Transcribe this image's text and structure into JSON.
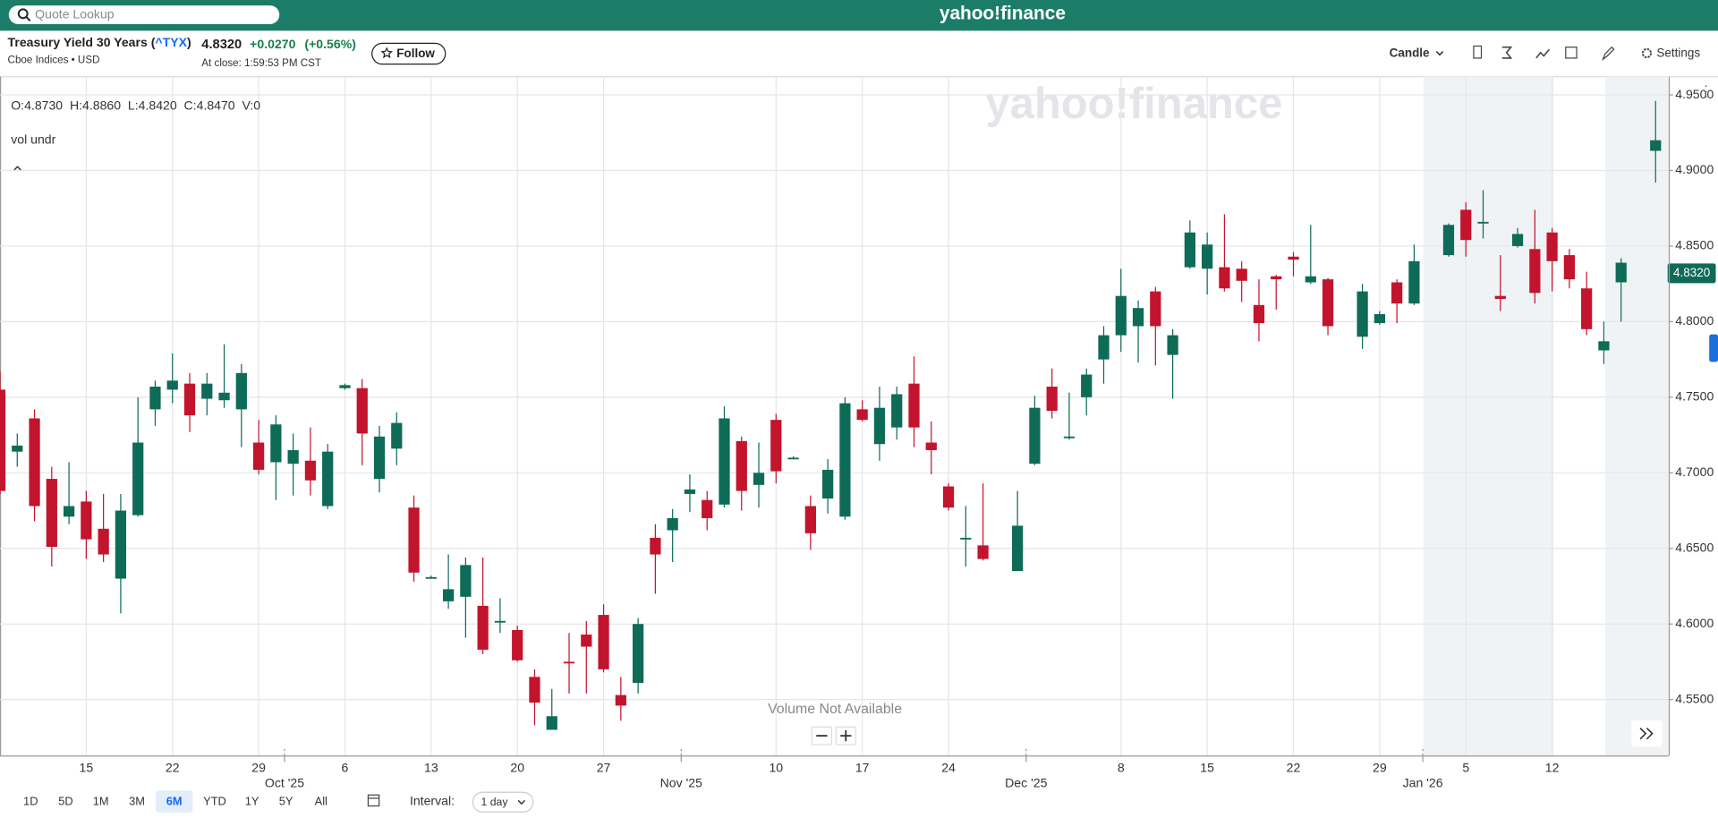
{
  "header": {
    "search_placeholder": "Quote Lookup",
    "brand": "yahoo!finance"
  },
  "quote": {
    "name_prefix": "Treasury Yield 30 Years (",
    "symbol": "^TYX",
    "name_suffix": ")",
    "exchange": "Cboe Indices • USD",
    "price": "4.8320",
    "change": "+0.0270",
    "change_percent": "(+0.56%)",
    "close_time": "At close: 1:59:53 PM CST",
    "follow": "Follow"
  },
  "toolbar": {
    "chart_type": "Candle",
    "settings": "Settings"
  },
  "chart_data": {
    "type": "candlestick",
    "watermark": "yahoo!finance",
    "ohlc_readout": "O:4.8730  H:4.8860  L:4.8420  C:4.8470  V:0",
    "study_label": "vol undr",
    "volume_note": "Volume Not Available",
    "up_color": "#0e6b57",
    "down_color": "#c3142d",
    "ylim": [
      4.513,
      4.962
    ],
    "yticks": [
      {
        "value": 4.55,
        "label": "4.5500"
      },
      {
        "value": 4.6,
        "label": "4.6000"
      },
      {
        "value": 4.65,
        "label": "4.6500"
      },
      {
        "value": 4.7,
        "label": "4.7000"
      },
      {
        "value": 4.75,
        "label": "4.7500"
      },
      {
        "value": 4.8,
        "label": "4.8000"
      },
      {
        "value": 4.85,
        "label": "4.8500"
      },
      {
        "value": 4.9,
        "label": "4.9000"
      },
      {
        "value": 4.95,
        "label": "4.9500"
      }
    ],
    "last_price": {
      "value": 4.832,
      "label": "4.8320"
    },
    "grid": true,
    "categories": [
      null,
      null,
      null,
      null,
      null,
      "15",
      null,
      null,
      null,
      null,
      "22",
      null,
      null,
      null,
      null,
      "29",
      null,
      null,
      null,
      null,
      "6",
      null,
      null,
      null,
      null,
      "13",
      null,
      null,
      null,
      null,
      "20",
      null,
      null,
      null,
      null,
      "27",
      null,
      null,
      null,
      null,
      null,
      null,
      null,
      null,
      null,
      "10",
      null,
      null,
      null,
      null,
      "17",
      null,
      null,
      null,
      null,
      "24",
      null,
      null,
      null,
      null,
      null,
      null,
      null,
      null,
      null,
      "8",
      null,
      null,
      null,
      null,
      "15",
      null,
      null,
      null,
      null,
      "22",
      null,
      null,
      null,
      null,
      "29",
      null,
      null,
      null,
      null,
      "5",
      null,
      null,
      null,
      null,
      "12",
      null,
      null,
      null,
      null,
      null,
      null
    ],
    "months": [
      null,
      null,
      null,
      null,
      null,
      null,
      null,
      null,
      null,
      null,
      null,
      null,
      null,
      null,
      null,
      null,
      null,
      "Oct '25",
      null,
      null,
      null,
      null,
      null,
      null,
      null,
      null,
      null,
      null,
      null,
      null,
      null,
      null,
      null,
      null,
      null,
      null,
      null,
      null,
      null,
      null,
      "Nov '25",
      null,
      null,
      null,
      null,
      null,
      null,
      null,
      null,
      null,
      null,
      null,
      null,
      null,
      null,
      null,
      null,
      null,
      null,
      null,
      "Dec '25",
      null,
      null,
      null,
      null,
      null,
      null,
      null,
      null,
      null,
      null,
      null,
      null,
      null,
      null,
      null,
      null,
      null,
      null,
      null,
      null,
      null,
      null,
      "Jan '26",
      null,
      null,
      null,
      null,
      null,
      null,
      null,
      null,
      null,
      null,
      null,
      null,
      null
    ],
    "open": [
      4.755,
      4.714,
      4.736,
      4.696,
      4.671,
      4.681,
      4.663,
      4.63,
      4.672,
      4.742,
      4.755,
      4.759,
      4.749,
      4.748,
      4.742,
      4.72,
      4.707,
      4.706,
      4.708,
      4.678,
      4.756,
      4.756,
      4.696,
      4.716,
      4.677,
      4.631,
      4.615,
      4.618,
      4.612,
      4.601,
      4.596,
      4.565,
      4.53,
      4.575,
      4.593,
      4.606,
      4.553,
      4.561,
      4.657,
      4.662,
      4.686,
      4.682,
      4.679,
      4.721,
      4.692,
      4.735,
      4.71,
      4.678,
      4.683,
      4.671,
      4.742,
      4.719,
      4.73,
      4.759,
      4.72,
      4.691,
      4.656,
      4.652,
      null,
      4.635,
      4.706,
      4.757,
      4.723,
      4.75,
      4.775,
      4.791,
      4.797,
      4.82,
      4.778,
      4.836,
      4.835,
      4.836,
      4.835,
      4.811,
      4.83,
      4.843,
      4.826,
      4.828,
      null,
      4.79,
      4.799,
      4.826,
      4.812,
      null,
      4.844,
      4.874,
      4.865,
      4.817,
      4.85,
      4.848,
      4.859,
      4.844,
      4.822,
      4.781,
      4.826,
      null,
      4.913
    ],
    "high": [
      4.767,
      4.726,
      4.742,
      4.704,
      4.707,
      4.688,
      4.686,
      4.686,
      4.75,
      4.761,
      4.779,
      4.766,
      4.766,
      4.785,
      4.772,
      4.735,
      4.738,
      4.726,
      4.73,
      4.719,
      4.759,
      4.762,
      4.731,
      4.74,
      4.685,
      4.632,
      4.646,
      4.644,
      4.644,
      4.617,
      4.599,
      4.57,
      4.557,
      4.594,
      4.602,
      4.613,
      4.565,
      4.604,
      4.666,
      4.676,
      4.699,
      4.688,
      4.744,
      4.724,
      4.72,
      4.739,
      4.711,
      4.685,
      4.709,
      4.75,
      4.748,
      4.757,
      4.757,
      4.777,
      4.734,
      4.693,
      4.678,
      4.693,
      null,
      4.688,
      4.751,
      4.769,
      4.753,
      4.769,
      4.797,
      4.835,
      4.814,
      4.823,
      4.795,
      4.867,
      4.859,
      4.871,
      4.84,
      4.828,
      4.831,
      4.846,
      4.864,
      4.829,
      null,
      4.825,
      4.807,
      4.828,
      4.851,
      null,
      4.865,
      4.879,
      4.887,
      4.844,
      4.862,
      4.874,
      4.862,
      4.848,
      4.833,
      4.8,
      4.842,
      null,
      4.946
    ],
    "low": [
      4.686,
      4.704,
      4.668,
      4.638,
      4.666,
      4.643,
      4.641,
      4.607,
      4.671,
      4.731,
      4.746,
      4.727,
      4.738,
      4.743,
      4.717,
      4.699,
      4.682,
      4.685,
      4.685,
      4.676,
      4.755,
      4.705,
      4.687,
      4.705,
      4.628,
      4.63,
      4.61,
      4.591,
      4.58,
      4.594,
      4.575,
      4.533,
      4.53,
      4.554,
      4.554,
      4.568,
      4.536,
      4.554,
      4.62,
      4.641,
      4.674,
      4.662,
      4.677,
      4.675,
      4.677,
      4.693,
      4.709,
      4.649,
      4.673,
      4.669,
      4.734,
      4.708,
      4.722,
      4.717,
      4.699,
      4.675,
      4.638,
      4.642,
      null,
      4.635,
      4.705,
      4.736,
      4.722,
      4.738,
      4.759,
      4.78,
      4.773,
      4.771,
      4.749,
      4.835,
      4.818,
      4.82,
      4.813,
      4.787,
      4.808,
      4.83,
      4.825,
      4.791,
      null,
      4.782,
      4.798,
      4.799,
      4.811,
      null,
      4.843,
      4.843,
      4.855,
      4.807,
      4.849,
      4.812,
      4.82,
      4.822,
      4.791,
      4.772,
      4.8,
      null,
      4.892
    ],
    "close": [
      4.688,
      4.718,
      4.678,
      4.651,
      4.678,
      4.656,
      4.646,
      4.675,
      4.72,
      4.757,
      4.761,
      4.738,
      4.759,
      4.753,
      4.766,
      4.702,
      4.732,
      4.715,
      4.695,
      4.714,
      4.758,
      4.726,
      4.724,
      4.733,
      4.634,
      4.631,
      4.623,
      4.639,
      4.583,
      4.602,
      4.576,
      4.548,
      4.539,
      4.574,
      4.585,
      4.57,
      4.546,
      4.6,
      4.646,
      4.67,
      4.689,
      4.67,
      4.736,
      4.688,
      4.7,
      4.701,
      4.71,
      4.66,
      4.702,
      4.746,
      4.735,
      4.743,
      4.752,
      4.73,
      4.715,
      4.677,
      4.657,
      4.643,
      null,
      4.665,
      4.743,
      4.741,
      4.724,
      4.765,
      4.791,
      4.817,
      4.809,
      4.797,
      4.791,
      4.859,
      4.851,
      4.822,
      4.827,
      4.799,
      4.828,
      4.841,
      4.83,
      4.797,
      null,
      4.82,
      4.805,
      4.812,
      4.84,
      null,
      4.864,
      4.854,
      4.866,
      4.815,
      4.858,
      4.819,
      4.84,
      4.828,
      4.795,
      4.787,
      4.839,
      null,
      4.92
    ]
  },
  "footer": {
    "ranges": [
      "1D",
      "5D",
      "1M",
      "3M",
      "6M",
      "YTD",
      "1Y",
      "5Y",
      "All"
    ],
    "selected_range": "6M",
    "interval_label": "Interval:",
    "interval": "1 day"
  }
}
